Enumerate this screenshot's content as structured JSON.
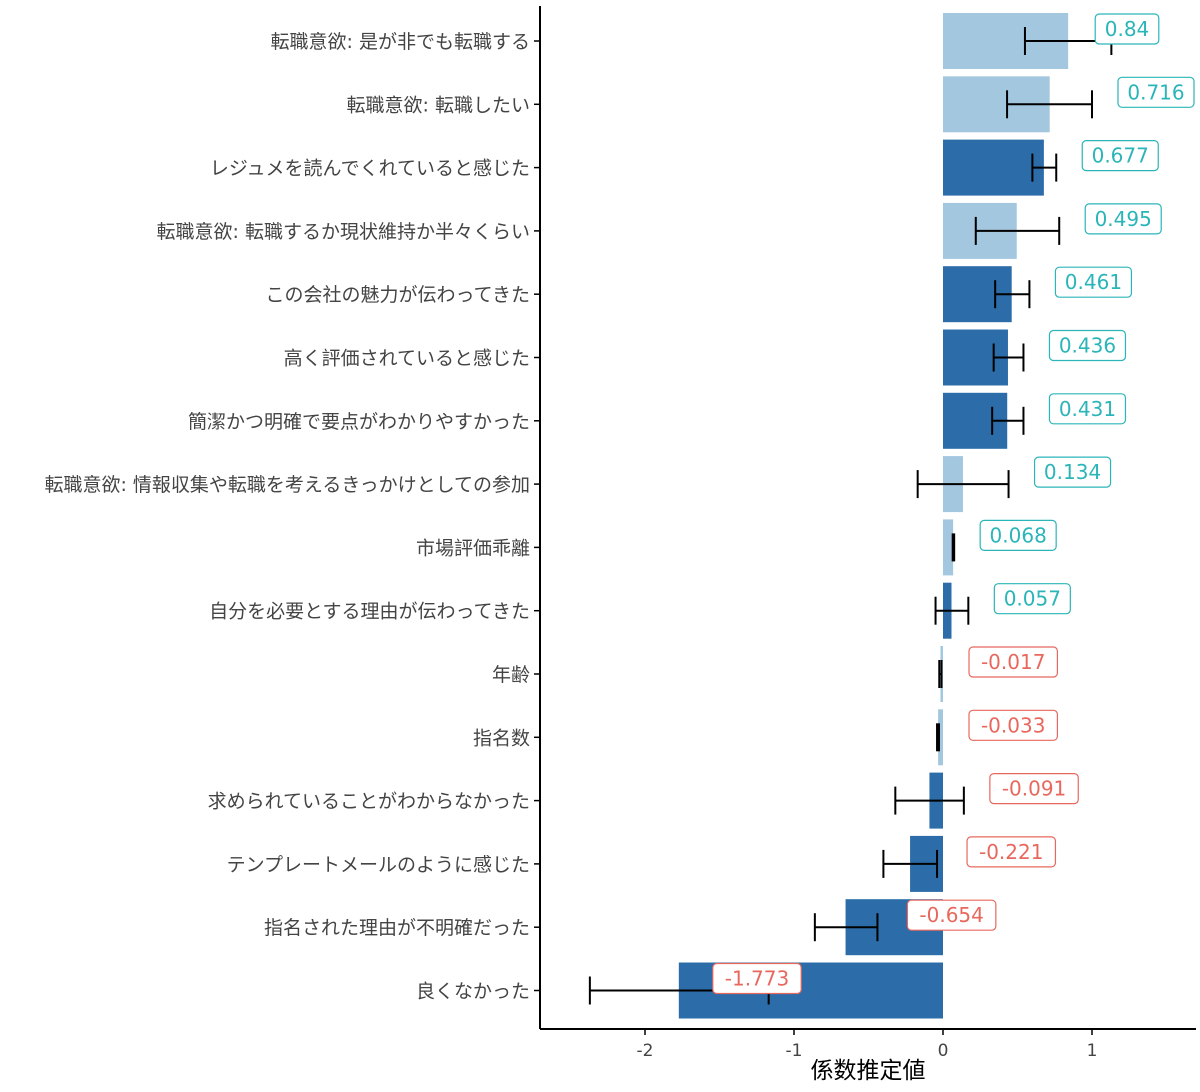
{
  "colors": {
    "bar_dark": "#2b6ca9",
    "bar_light": "#a4c7e0",
    "label_positive": "#2bb5b8",
    "label_negative": "#e8685e",
    "axis": "#000000",
    "text": "#444444"
  },
  "chart_data": {
    "type": "bar",
    "orientation": "horizontal",
    "title": "",
    "xlabel": "係数推定値",
    "ylabel": "",
    "xlim": [
      -2.7,
      1.7
    ],
    "x_ticks": [
      -2,
      -1,
      0,
      1
    ],
    "x_tick_labels": [
      "-2",
      "-1",
      "0",
      "1"
    ],
    "grid": false,
    "legend": "none",
    "categories": [
      "転職意欲: 是が非でも転職する",
      "転職意欲: 転職したい",
      "レジュメを読んでくれていると感じた",
      "転職意欲: 転職するか現状維持か半々くらい",
      "この会社の魅力が伝わってきた",
      "高く評価されていると感じた",
      "簡潔かつ明確で要点がわかりやすかった",
      "転職意欲: 情報収集や転職を考えるきっかけとしての参加",
      "市場評価乖離",
      "自分を必要とする理由が伝わってきた",
      "年齢",
      "指名数",
      "求められていることがわからなかった",
      "テンプレートメールのように感じた",
      "指名された理由が不明確だった",
      "良くなかった"
    ],
    "values": [
      0.84,
      0.716,
      0.677,
      0.495,
      0.461,
      0.436,
      0.431,
      0.134,
      0.068,
      0.057,
      -0.017,
      -0.033,
      -0.091,
      -0.221,
      -0.654,
      -1.773
    ],
    "value_labels": [
      "0.84",
      "0.716",
      "0.677",
      "0.495",
      "0.461",
      "0.436",
      "0.431",
      "0.134",
      "0.068",
      "0.057",
      "-0.017",
      "-0.033",
      "-0.091",
      "-0.221",
      "-0.654",
      "-1.773"
    ],
    "error_low": [
      0.55,
      0.43,
      0.6,
      0.22,
      0.35,
      0.34,
      0.33,
      -0.17,
      0.065,
      -0.05,
      -0.025,
      -0.04,
      -0.32,
      -0.4,
      -0.86,
      -2.37
    ],
    "error_high": [
      1.13,
      1.0,
      0.76,
      0.78,
      0.58,
      0.54,
      0.54,
      0.44,
      0.075,
      0.17,
      -0.01,
      -0.027,
      0.14,
      -0.04,
      -0.44,
      -1.17
    ],
    "bar_group": [
      "light",
      "light",
      "dark",
      "light",
      "dark",
      "dark",
      "dark",
      "light",
      "light",
      "dark",
      "light",
      "light",
      "dark",
      "dark",
      "dark",
      "dark"
    ]
  }
}
